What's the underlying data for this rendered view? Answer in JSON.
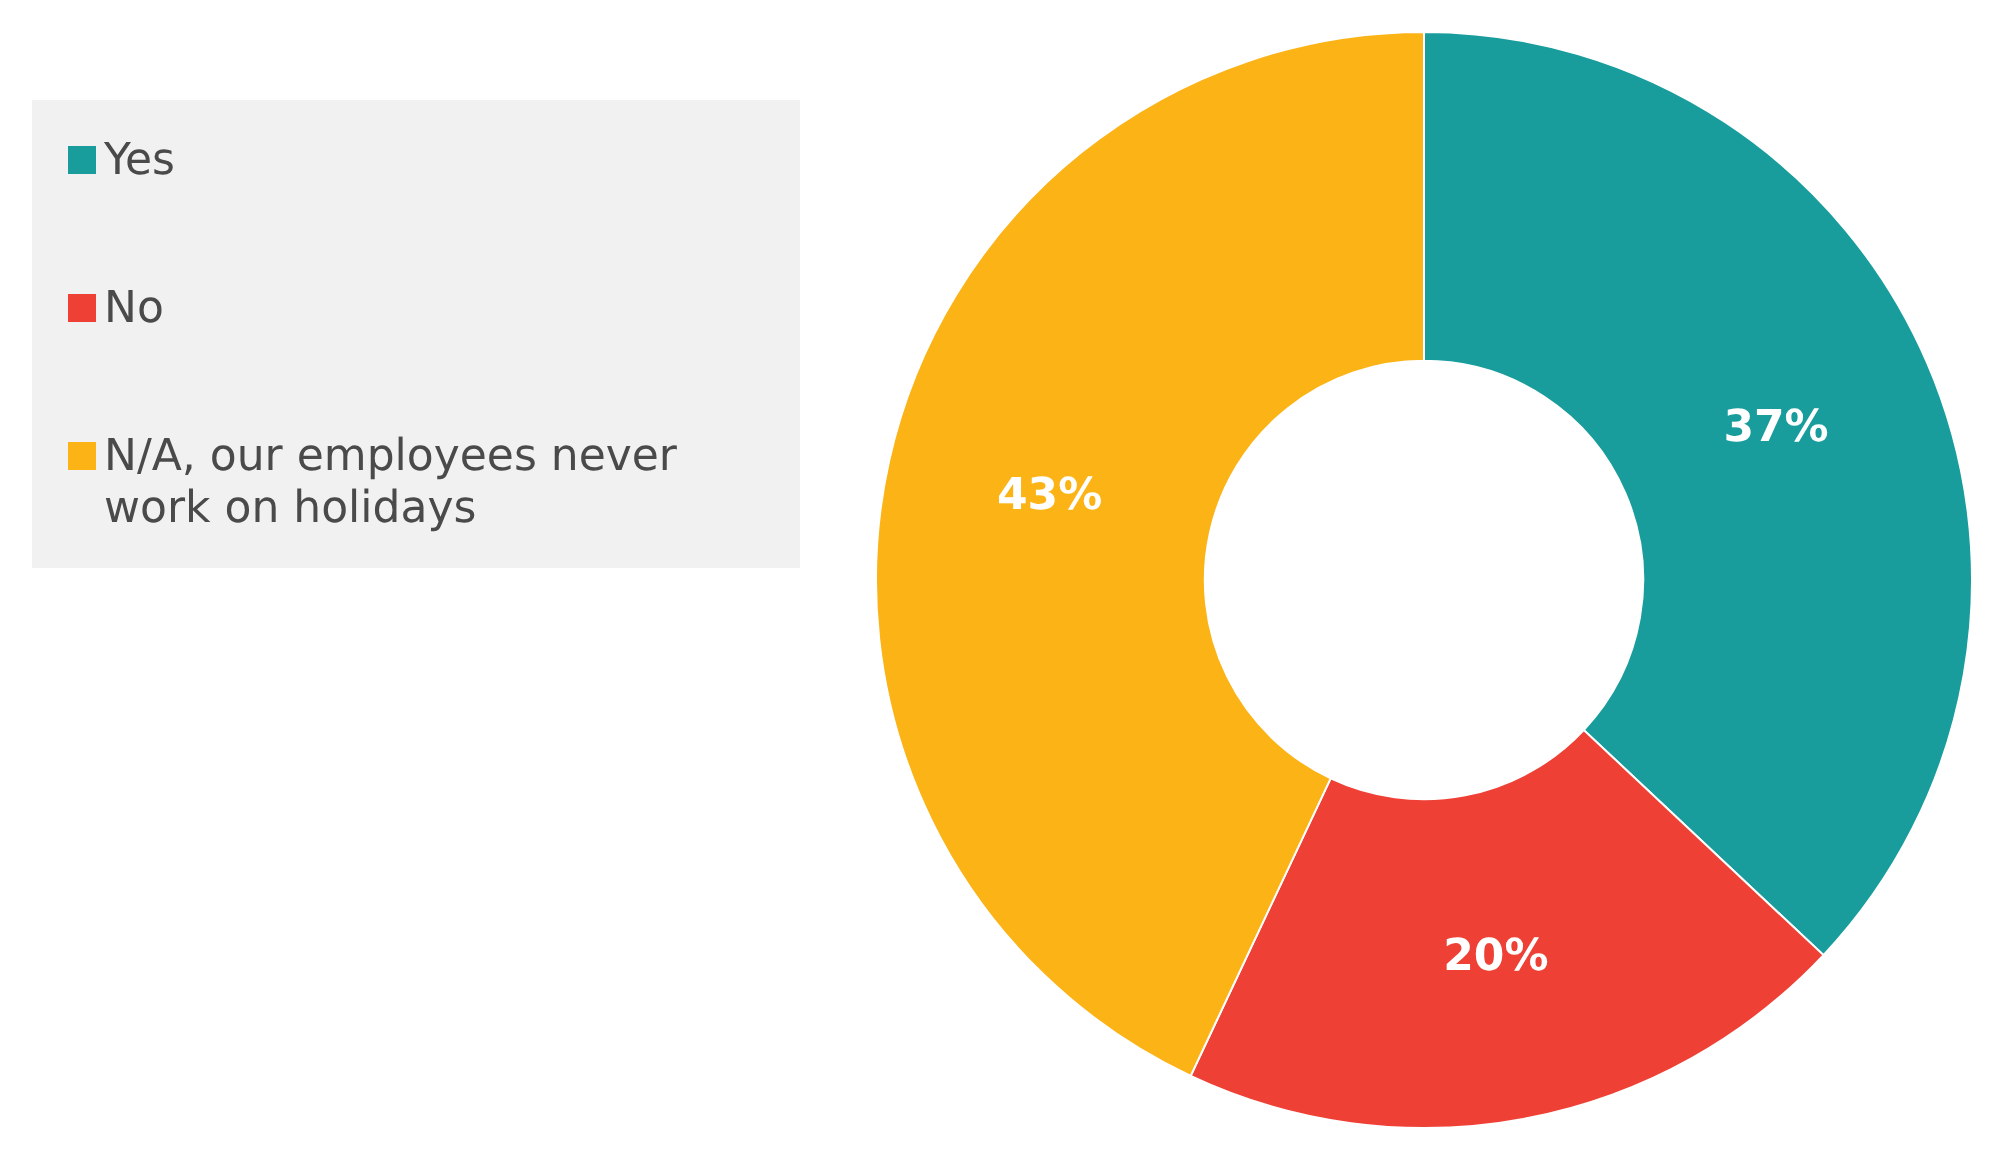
{
  "chart_data": {
    "type": "donut",
    "categories": [
      "Yes",
      "No",
      "N/A, our employees never work on holidays"
    ],
    "values": [
      37,
      20,
      43
    ],
    "colors": [
      "#189c9c",
      "#ee4035",
      "#fbb316"
    ],
    "value_labels": [
      "37%",
      "20%",
      "43%"
    ],
    "legend": "left"
  }
}
